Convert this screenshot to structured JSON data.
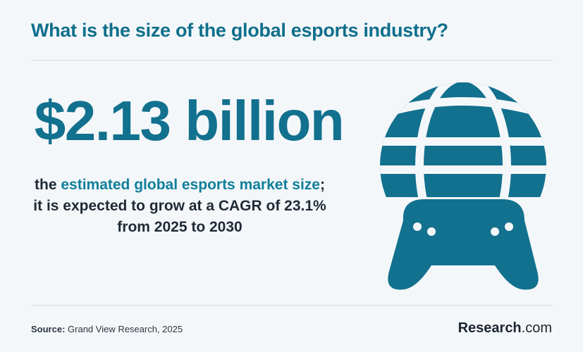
{
  "title": "What is the size of the global esports industry?",
  "stat": "$2.13 billion",
  "description": {
    "part1": "the ",
    "highlight": "estimated global esports market size",
    "part2": "; it is expected to grow at a CAGR of 23.1% from 2025 to 2030"
  },
  "source": {
    "label": "Source:",
    "text": " Grand View Research, 2025"
  },
  "brand": {
    "name": "Research",
    "suffix": ".com"
  },
  "icon": "globe-gamepad-icon",
  "colors": {
    "accent": "#12718e",
    "text": "#1f2a36",
    "background": "#f4f7f9"
  }
}
